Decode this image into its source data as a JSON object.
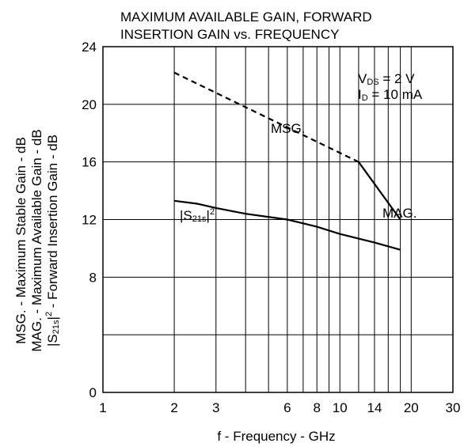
{
  "chart_data": {
    "type": "line",
    "title_lines": [
      "MAXIMUM AVAILABLE GAIN, FORWARD",
      "INSERTION GAIN vs. FREQUENCY"
    ],
    "xlabel": "f - Frequency - GHz",
    "ylabel_lines": {
      "msg": "MSG. - Maximum Stable Gain - dB",
      "mag": "MAG. - Maximum Available Gain - dB",
      "s21_prefix": "|S",
      "s21_sub": "21s",
      "s21_suffix": "|",
      "s21_sup": "2",
      "s21_rest": " - Forward Insertion Gain - dB"
    },
    "x_scale": "log",
    "xlim": [
      1,
      30
    ],
    "ylim": [
      0,
      24
    ],
    "x_ticks": [
      1,
      2,
      3,
      6,
      8,
      10,
      14,
      20,
      30
    ],
    "x_tick_labels": [
      "1",
      "2",
      "3",
      "6",
      "8",
      "10",
      "14",
      "20",
      "30"
    ],
    "x_gridlines": [
      2,
      3,
      4,
      5,
      6,
      7,
      8,
      9,
      10,
      12,
      14,
      16,
      18,
      20
    ],
    "y_ticks": [
      0,
      8,
      12,
      16,
      20,
      24
    ],
    "y_tick_labels": [
      "0",
      "8",
      "12",
      "16",
      "20",
      "24"
    ],
    "y_gridlines": [
      4,
      8,
      12,
      16,
      20
    ],
    "grid": true,
    "conditions": {
      "vds_prefix": "V",
      "vds_sub": "DS",
      "vds_value": " = 2 V",
      "id_prefix": "I",
      "id_sub": "D",
      "id_value": " = 10 mA"
    },
    "series": [
      {
        "name": "MSG.",
        "style": "dashed",
        "x": [
          2,
          12
        ],
        "y": [
          22.2,
          16.0
        ]
      },
      {
        "name": "MAG.",
        "style": "solid",
        "x": [
          12,
          18
        ],
        "y": [
          16.0,
          12.0
        ]
      },
      {
        "name_prefix": "|S",
        "name_sub": "21s",
        "name_suffix": "|",
        "name_sup": "2",
        "style": "solid",
        "x": [
          2,
          2.5,
          3,
          4,
          6,
          8,
          10,
          14,
          18
        ],
        "y": [
          13.3,
          13.1,
          12.8,
          12.4,
          12.0,
          11.5,
          11.0,
          10.4,
          9.9
        ]
      }
    ]
  }
}
